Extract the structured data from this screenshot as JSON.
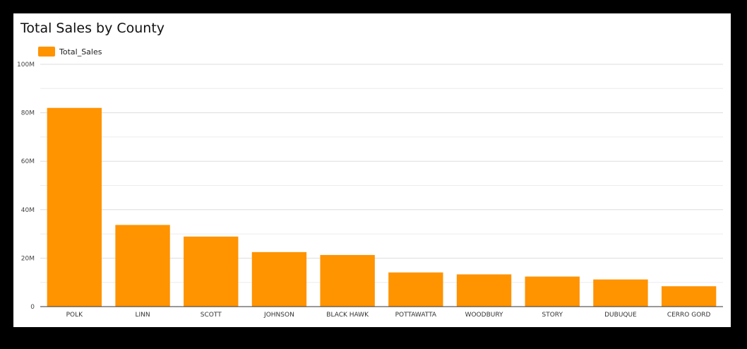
{
  "chart_data": {
    "type": "bar",
    "title": "Total Sales by County",
    "xlabel": "",
    "ylabel": "",
    "categories": [
      "POLK",
      "LINN",
      "SCOTT",
      "JOHNSON",
      "BLACK HAWK",
      "POTTAWATTA",
      "WOODBURY",
      "STORY",
      "DUBUQUE",
      "CERRO GORD"
    ],
    "series": [
      {
        "name": "Total_Sales",
        "color": "#ff9300",
        "values": [
          82000000,
          33700000,
          28900000,
          22500000,
          21300000,
          14100000,
          13300000,
          12400000,
          11200000,
          8400000
        ]
      }
    ],
    "ylim": [
      0,
      100000000
    ],
    "yticks": [
      0,
      20000000,
      40000000,
      60000000,
      80000000,
      100000000
    ],
    "ytick_labels": [
      "0",
      "20M",
      "40M",
      "60M",
      "80M",
      "100M"
    ],
    "grid": true,
    "legend_position": "top-left"
  }
}
